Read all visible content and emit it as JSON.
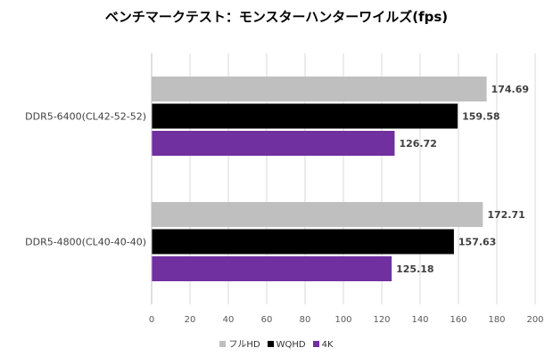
{
  "chart_data": {
    "type": "bar",
    "orientation": "horizontal",
    "title": "ベンチマークテスト：モンスターハンターワイルズ(fps)",
    "xlabel": "",
    "ylabel": "",
    "categories": [
      "DDR5-6400(CL42-52-52)",
      "DDR5-4800(CL40-40-40)"
    ],
    "series": [
      {
        "name": "フルHD",
        "color": "#bfbfbf",
        "values": [
          174.69,
          172.71
        ],
        "labels": [
          "174.69",
          "172.71"
        ]
      },
      {
        "name": "WQHD",
        "color": "#000000",
        "values": [
          159.58,
          157.63
        ],
        "labels": [
          "159.58",
          "157.63"
        ]
      },
      {
        "name": "4K",
        "color": "#7030a0",
        "values": [
          126.72,
          125.18
        ],
        "labels": [
          "126.72",
          "125.18"
        ]
      }
    ],
    "xlim": [
      0,
      200
    ],
    "xticks": [
      "0",
      "20",
      "40",
      "60",
      "80",
      "100",
      "120",
      "140",
      "160",
      "180",
      "200"
    ],
    "grid": true,
    "legend": "bottom"
  }
}
